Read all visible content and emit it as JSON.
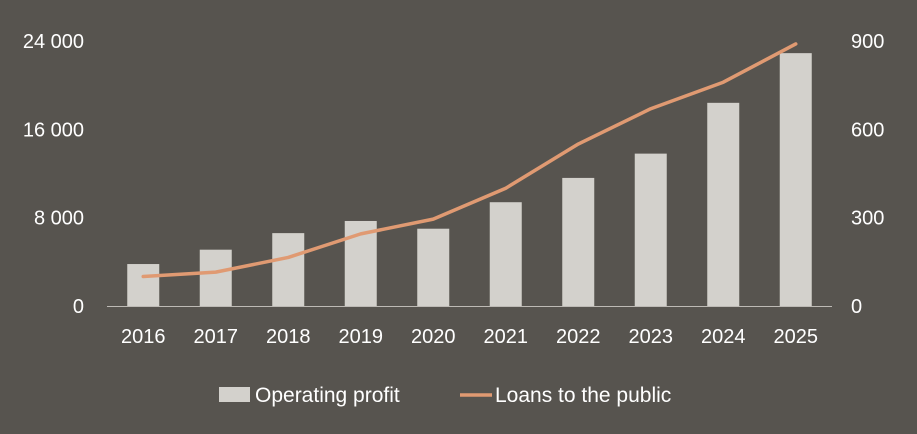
{
  "chart_data": {
    "type": "bar",
    "categories": [
      "2016",
      "2017",
      "2018",
      "2019",
      "2020",
      "2021",
      "2022",
      "2023",
      "2024",
      "2025"
    ],
    "series": [
      {
        "name": "Operating profit",
        "type": "bar",
        "axis": "left",
        "color": "#d3d1cc",
        "values": [
          3800,
          5100,
          6600,
          7700,
          7000,
          9400,
          11600,
          13800,
          18400,
          22900
        ]
      },
      {
        "name": "Loans to the public",
        "type": "line",
        "axis": "right",
        "color": "#e09a72",
        "values": [
          100,
          115,
          165,
          245,
          295,
          400,
          550,
          670,
          760,
          890
        ]
      }
    ],
    "left_axis": {
      "ylim": [
        0,
        24000
      ],
      "ticks": [
        0,
        8000,
        16000,
        24000
      ],
      "tick_labels": [
        "0",
        "8 000",
        "16 000",
        "24 000"
      ]
    },
    "right_axis": {
      "ylim": [
        0,
        900
      ],
      "ticks": [
        0,
        300,
        600,
        900
      ],
      "tick_labels": [
        "0",
        "300",
        "600",
        "900"
      ]
    },
    "legend": {
      "placement": "bottom-center"
    },
    "grid": false,
    "colors": {
      "background": "#57544f",
      "text": "#ffffff",
      "axis_line": "#bdbab5"
    }
  }
}
